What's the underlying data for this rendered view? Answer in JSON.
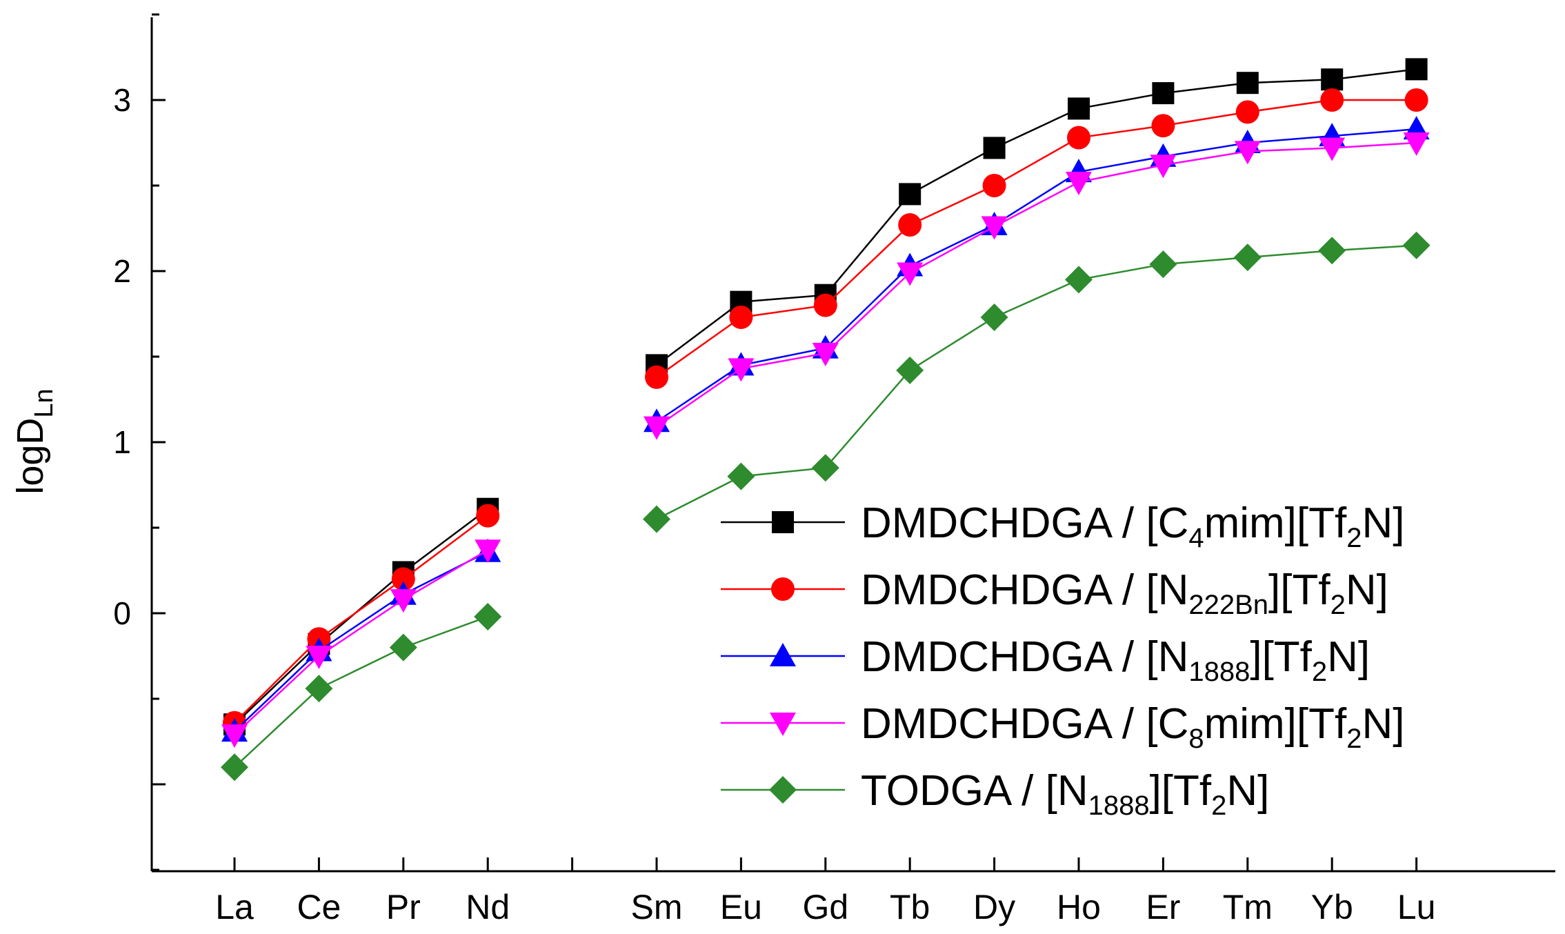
{
  "chart_data": {
    "type": "line",
    "title": "",
    "xlabel": "",
    "ylabel": "logD",
    "ylabel_subscript": "Ln",
    "ylim": [
      -1.5,
      3.5
    ],
    "yticks": [
      0,
      1,
      2,
      3
    ],
    "categories": [
      "La",
      "Ce",
      "Pr",
      "Nd",
      "",
      "Sm",
      "Eu",
      "Gd",
      "Tb",
      "Dy",
      "Ho",
      "Er",
      "Tm",
      "Yb",
      "Lu"
    ],
    "legend_position": "lower-right",
    "series": [
      {
        "name": "DMDCHDGA / [C4mim][Tf2N]",
        "legend_parts": [
          [
            "DMDCHDGA / [C",
            false
          ],
          [
            "4",
            true
          ],
          [
            "mim][Tf",
            false
          ],
          [
            "2",
            true
          ],
          [
            "N]",
            false
          ]
        ],
        "color": "#000000",
        "marker": "square",
        "values": [
          -0.65,
          -0.18,
          0.24,
          0.61,
          null,
          1.45,
          1.82,
          1.86,
          2.45,
          2.72,
          2.95,
          3.04,
          3.1,
          3.12,
          3.18
        ]
      },
      {
        "name": "DMDCHDGA / [N222Bn][Tf2N]",
        "legend_parts": [
          [
            "DMDCHDGA / [N",
            false
          ],
          [
            "222Bn",
            true
          ],
          [
            "][Tf",
            false
          ],
          [
            "2",
            true
          ],
          [
            "N]",
            false
          ]
        ],
        "color": "#ff0000",
        "marker": "circle",
        "values": [
          -0.64,
          -0.15,
          0.2,
          0.57,
          null,
          1.38,
          1.73,
          1.8,
          2.27,
          2.5,
          2.78,
          2.85,
          2.93,
          3.0,
          3.0
        ]
      },
      {
        "name": "DMDCHDGA / [N1888][Tf2N]",
        "legend_parts": [
          [
            "DMDCHDGA / [N",
            false
          ],
          [
            "1888",
            true
          ],
          [
            "][Tf",
            false
          ],
          [
            "2",
            true
          ],
          [
            "N]",
            false
          ]
        ],
        "color": "#0000ff",
        "marker": "triangle-up",
        "values": [
          -0.69,
          -0.22,
          0.11,
          0.36,
          null,
          1.12,
          1.45,
          1.55,
          2.03,
          2.27,
          2.58,
          2.67,
          2.75,
          2.79,
          2.83
        ]
      },
      {
        "name": "DMDCHDGA / [C8mim][Tf2N]",
        "legend_parts": [
          [
            "DMDCHDGA / [C",
            false
          ],
          [
            "8",
            true
          ],
          [
            "mim][Tf",
            false
          ],
          [
            "2",
            true
          ],
          [
            "N]",
            false
          ]
        ],
        "color": "#ff00ff",
        "marker": "triangle-down",
        "values": [
          -0.71,
          -0.25,
          0.08,
          0.37,
          null,
          1.09,
          1.43,
          1.52,
          1.99,
          2.26,
          2.52,
          2.62,
          2.7,
          2.72,
          2.75
        ]
      },
      {
        "name": "TODGA / [N1888][Tf2N]",
        "legend_parts": [
          [
            "TODGA / [N",
            false
          ],
          [
            "1888",
            true
          ],
          [
            "][Tf",
            false
          ],
          [
            "2",
            true
          ],
          [
            "N]",
            false
          ]
        ],
        "color": "#2e8b2e",
        "marker": "diamond",
        "values": [
          -0.9,
          -0.44,
          -0.2,
          -0.02,
          null,
          0.55,
          0.8,
          0.85,
          1.42,
          1.73,
          1.95,
          2.04,
          2.08,
          2.12,
          2.15
        ]
      }
    ]
  }
}
